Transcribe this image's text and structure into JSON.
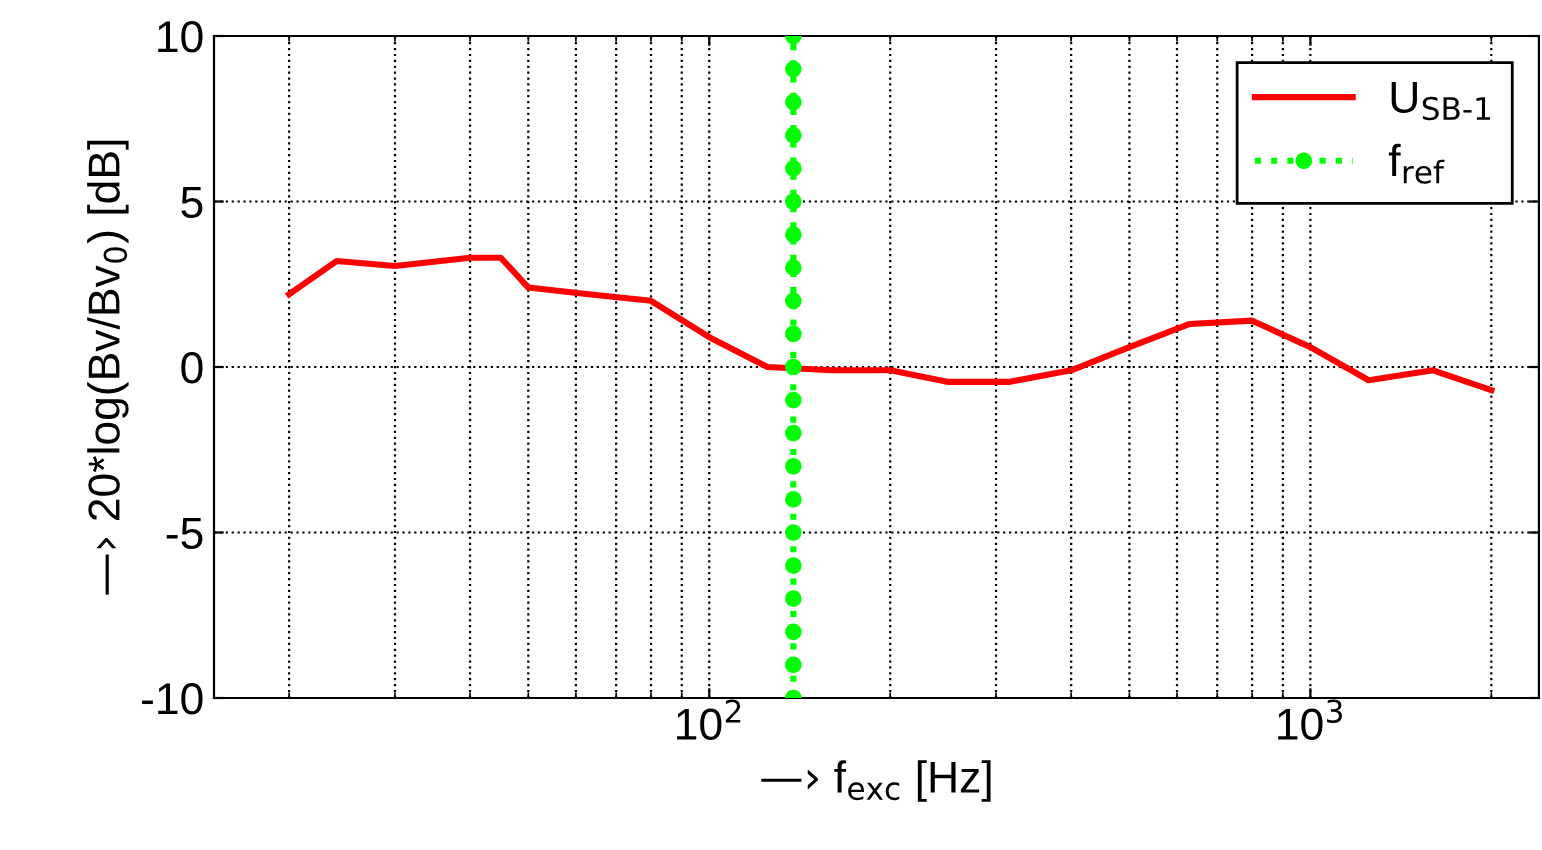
{
  "chart_data": {
    "type": "line",
    "xlabel": "—› f$_{exc}$ [Hz]",
    "ylabel": "—› 20*log(Bv/Bv$_{0}$) [dB]",
    "log": "x",
    "xlim": [
      15,
      2400
    ],
    "ylim": [
      -10,
      10
    ],
    "xticks": [
      {
        "value": 100,
        "label": "10$^{2}$"
      },
      {
        "value": 1000,
        "label": "10$^{3}$"
      }
    ],
    "yticks": [
      -10,
      -5,
      0,
      5,
      10
    ],
    "grid": true,
    "legend": "top right",
    "series": [
      {
        "name": "U$_{SB-1}$",
        "color": "#ff0000",
        "marker": "none",
        "line_style": "solid",
        "x": [
          20,
          24,
          30,
          40,
          45,
          50,
          63,
          80,
          100,
          125,
          160,
          200,
          250,
          315,
          400,
          500,
          630,
          800,
          1000,
          1250,
          1600,
          2000
        ],
        "values": [
          2.2,
          3.2,
          3.05,
          3.3,
          3.3,
          2.4,
          2.2,
          2.0,
          0.9,
          0.0,
          -0.1,
          -0.1,
          -0.45,
          -0.45,
          -0.1,
          0.6,
          1.3,
          1.4,
          0.6,
          -0.4,
          -0.1,
          -0.7
        ]
      },
      {
        "name": "f$_{ref}$",
        "color": "#00ff00",
        "marker": "circle",
        "line_style": "dotted",
        "x": [
          138,
          138,
          138,
          138,
          138,
          138,
          138,
          138,
          138,
          138,
          138,
          138,
          138,
          138,
          138,
          138,
          138,
          138,
          138,
          138,
          138
        ],
        "values": [
          -10,
          -9,
          -8,
          -7,
          -6,
          -5,
          -4,
          -3,
          -2,
          -1,
          0,
          1,
          2,
          3,
          4,
          5,
          6,
          7,
          8,
          9,
          10
        ]
      }
    ]
  }
}
